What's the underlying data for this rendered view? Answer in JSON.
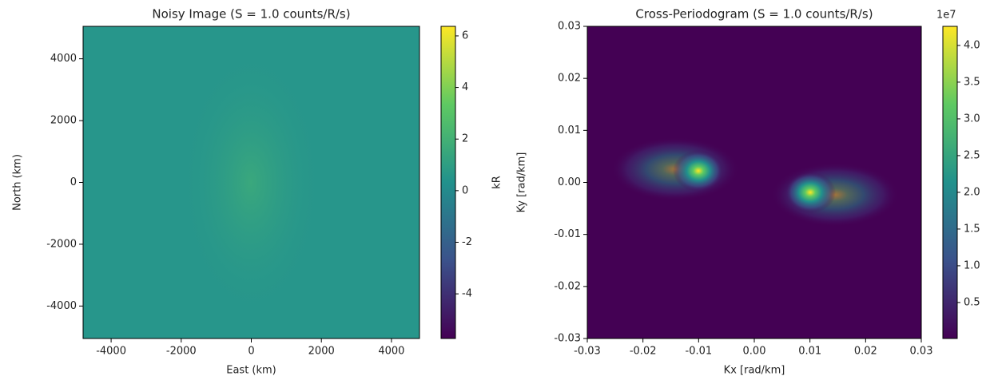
{
  "chart_data": [
    {
      "type": "heatmap",
      "title": "Noisy Image (S = 1.0 counts/R/s)",
      "xlabel": "East (km)",
      "ylabel": "North (km)",
      "xlim": [
        -4800,
        4800
      ],
      "ylim": [
        -5050,
        5050
      ],
      "xticks": [
        -4000,
        -2000,
        0,
        2000,
        4000
      ],
      "yticks": [
        -4000,
        -2000,
        0,
        2000,
        4000
      ],
      "colormap": "viridis",
      "colorbar": {
        "label": "kR",
        "lim": [
          -5.73,
          6.37
        ],
        "ticks": [
          -4,
          -2,
          0,
          2,
          4,
          6
        ]
      }
    },
    {
      "type": "heatmap",
      "title": "Cross-Periodogram (S = 1.0 counts/R/s)",
      "xlabel": "Kx [rad/km]",
      "ylabel": "Ky [rad/km]",
      "xlim": [
        -0.03,
        0.03
      ],
      "ylim": [
        -0.03,
        0.03
      ],
      "xticks": [
        -0.03,
        -0.02,
        -0.01,
        {
          "value": 0,
          "label": "0.00"
        },
        0.01,
        0.02,
        0.03
      ],
      "yticks": [
        -0.03,
        -0.02,
        -0.01,
        {
          "value": 0,
          "label": "0.00"
        },
        0.01,
        0.02,
        0.03
      ],
      "colormap": "viridis",
      "colorbar": {
        "offset_label": "1e7",
        "lim": [
          0.01,
          4.26
        ],
        "ticks": [
          0.5,
          {
            "value": 1,
            "label": "1.0"
          },
          1.5,
          {
            "value": 2,
            "label": "2.0"
          },
          2.5,
          {
            "value": 3,
            "label": "3.0"
          },
          3.5,
          {
            "value": 4,
            "label": "4.0"
          }
        ]
      }
    }
  ]
}
